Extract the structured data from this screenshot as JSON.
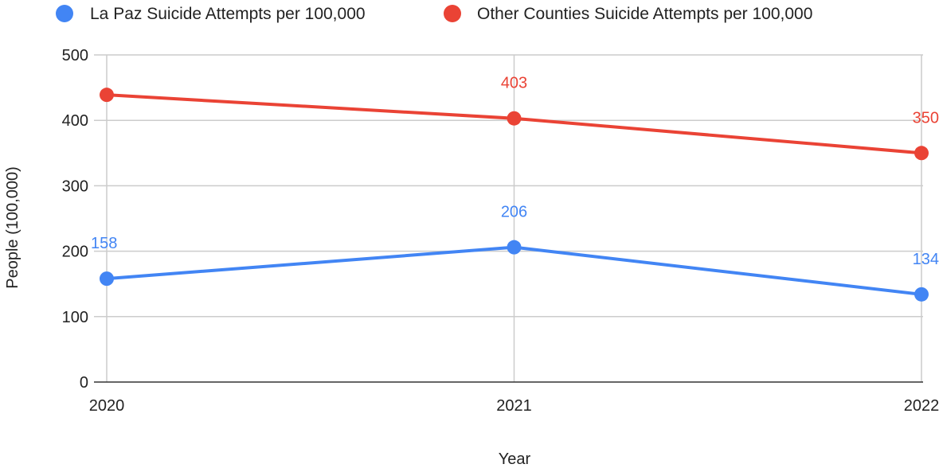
{
  "chart_data": {
    "type": "line",
    "title": "",
    "xlabel": "Year",
    "ylabel": "People (100,000)",
    "categories": [
      "2020",
      "2021",
      "2022"
    ],
    "ylim": [
      0,
      500
    ],
    "yticks": [
      "0",
      "100",
      "200",
      "300",
      "400",
      "500"
    ],
    "grid": true,
    "legend_position": "top",
    "series": [
      {
        "name": "La Paz Suicide Attempts per 100,000",
        "color": "#4285f4",
        "values": [
          158,
          206,
          134
        ],
        "data_labels": [
          "158",
          "206",
          "134"
        ]
      },
      {
        "name": "Other Counties Suicide Attempts per 100,000",
        "color": "#ea4335",
        "values": [
          439,
          403,
          350
        ],
        "data_labels": [
          "",
          "403",
          "350"
        ]
      }
    ]
  }
}
